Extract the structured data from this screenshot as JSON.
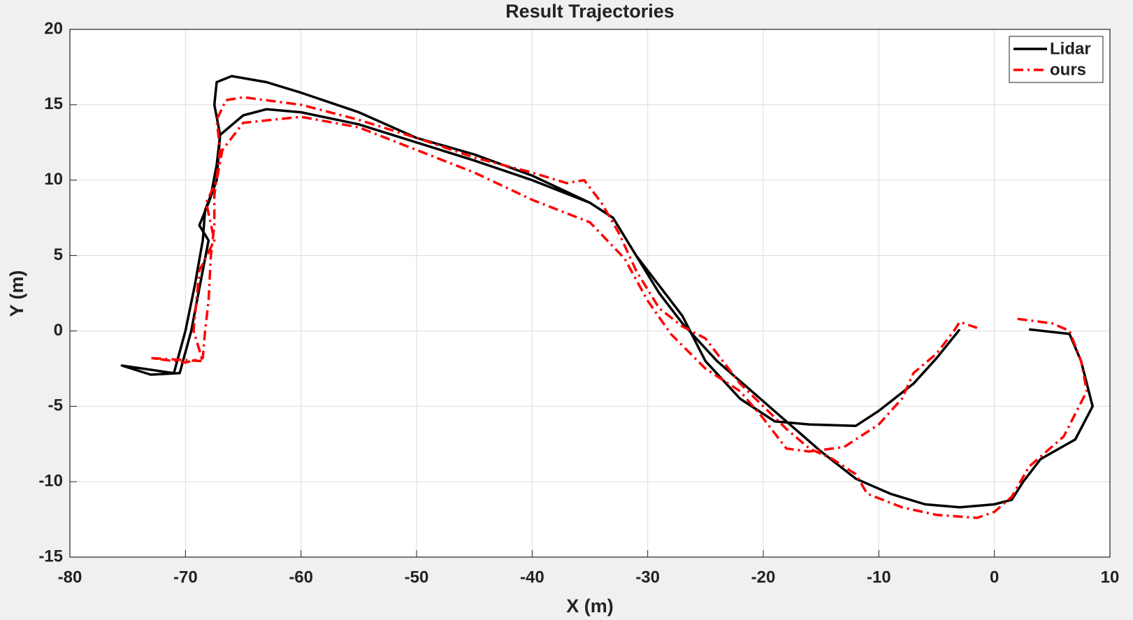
{
  "chart_data": {
    "type": "line",
    "title": "Result Trajectories",
    "x_label": "X (m)",
    "y_label": "Y (m)",
    "xlim": [
      -80,
      10
    ],
    "ylim": [
      -15,
      20
    ],
    "xticks": [
      -80,
      -70,
      -60,
      -50,
      -40,
      -30,
      -20,
      -10,
      0,
      10
    ],
    "yticks": [
      -15,
      -10,
      -5,
      0,
      5,
      10,
      15,
      20
    ],
    "grid": true,
    "legend": "top-right",
    "series": [
      {
        "name": "Lidar",
        "color": "#000000",
        "dash": "solid",
        "x": [
          3,
          6.5,
          7.5,
          8.5,
          7,
          4,
          2.5,
          1.5,
          0,
          -3,
          -6,
          -9,
          -12,
          -15,
          -18,
          -21,
          -24,
          -27,
          -29,
          -31,
          -33,
          -35,
          -40,
          -45,
          -50,
          -55,
          -60,
          -63,
          -66,
          -67.3,
          -67.5,
          -67,
          -67.3,
          -68,
          -68.8,
          -68,
          -68.5,
          -69.5,
          -70.5,
          -73,
          -75.5,
          -71,
          -70,
          -69.2,
          -68.5,
          -68.3,
          -67.8,
          -67.3,
          -67,
          -65,
          -63,
          -60,
          -55,
          -50,
          -45,
          -40,
          -35,
          -33,
          -31,
          -29,
          -27,
          -25,
          -22,
          -19,
          -16,
          -12,
          -10,
          -7,
          -5,
          -3
        ],
        "values": [
          0.1,
          -0.2,
          -2,
          -5,
          -7.2,
          -8.5,
          -10,
          -11.2,
          -11.5,
          -11.7,
          -11.5,
          -10.8,
          -9.8,
          -8,
          -6,
          -4,
          -2,
          0.5,
          2.5,
          5,
          7.5,
          8.5,
          10.3,
          11.7,
          12.8,
          14.5,
          15.8,
          16.5,
          16.9,
          16.5,
          15,
          13,
          10,
          8.5,
          7,
          6,
          4,
          0,
          -2.8,
          -2.9,
          -2.3,
          -2.8,
          0,
          3,
          6,
          8,
          9,
          11,
          13,
          14.3,
          14.7,
          14.5,
          13.7,
          12.5,
          11.3,
          10,
          8.5,
          7.5,
          5,
          3,
          1,
          -2,
          -4.5,
          -6,
          -6.2,
          -6.3,
          -5.3,
          -3.5,
          -1.8,
          0.1
        ]
      },
      {
        "name": "ours",
        "color": "#ff0000",
        "dash": "dashdot",
        "x": [
          2,
          5,
          6.5,
          7.5,
          8,
          6,
          3,
          1.5,
          0,
          -1.5,
          -5,
          -8,
          -11,
          -12,
          -14,
          -16,
          -18,
          -20,
          -22,
          -24,
          -25,
          -27,
          -29,
          -31,
          -32.5,
          -34,
          -35.5,
          -37,
          -40,
          -45,
          -50,
          -55,
          -60,
          -65,
          -66.5,
          -67.3,
          -67,
          -67.5,
          -67.5,
          -67.8,
          -68,
          -68.3,
          -68.5,
          -70,
          -73,
          -68.5,
          -69.3,
          -68.8,
          -67.5,
          -68.2,
          -67.3,
          -66.8,
          -65,
          -60,
          -55,
          -50,
          -45,
          -40,
          -35,
          -32,
          -30,
          -28,
          -25,
          -22,
          -20,
          -18,
          -16,
          -13,
          -10,
          -8,
          -7,
          -5,
          -3.5,
          -3,
          -1.5
        ],
        "values": [
          0.8,
          0.5,
          0,
          -2,
          -4,
          -7,
          -9,
          -11,
          -12,
          -12.4,
          -12.2,
          -11.7,
          -10.8,
          -9.5,
          -8.5,
          -7.8,
          -6.5,
          -5,
          -3.5,
          -1.5,
          -0.5,
          0.3,
          1.5,
          4,
          6.5,
          8.5,
          10,
          9.8,
          10.5,
          11.5,
          12.8,
          14,
          15,
          15.5,
          15.3,
          14,
          12,
          9,
          7,
          5,
          2,
          0,
          -1.8,
          -2.1,
          -1.8,
          -2,
          0,
          4,
          6,
          8.5,
          10,
          12,
          13.8,
          14.2,
          13.5,
          12,
          10.5,
          8.7,
          7.2,
          4.8,
          2,
          -0.2,
          -2.5,
          -4,
          -5.8,
          -7.8,
          -8,
          -7.7,
          -6.2,
          -4.5,
          -2.8,
          -1.5,
          0,
          0.6,
          0.2
        ]
      }
    ]
  }
}
